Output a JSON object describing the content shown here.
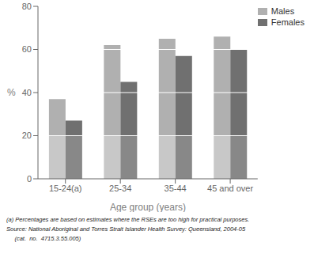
{
  "chart_data": {
    "type": "bar",
    "stacked": true,
    "categories": [
      "15-24(a)",
      "25-34",
      "35-44",
      "45 and over"
    ],
    "series": [
      {
        "name": "Males",
        "segments": [
          {
            "color": "#c8c8c8",
            "values": [
              20,
              20,
              20,
              20
            ]
          },
          {
            "color": "#b0b0b0",
            "values": [
              17,
              42,
              45,
              46
            ]
          }
        ]
      },
      {
        "name": "Females",
        "segments": [
          {
            "color": "#888888",
            "values": [
              20,
              20,
              20,
              20
            ]
          },
          {
            "color": "#707070",
            "values": [
              7,
              25,
              37,
              40
            ]
          }
        ]
      }
    ],
    "xlabel": "Age group (years)",
    "ylabel": "%",
    "ylim": [
      0,
      80
    ],
    "yticks": [
      0,
      20,
      40,
      60,
      80
    ],
    "grid": false,
    "legend": "upper right",
    "footnotes": [
      "(a) Percentages are based on estimates where the RSEs are too high for practical purposes.",
      "Source: National Aboriginal and Torres Strait Islander Health Survey: Queensland, 2004-05",
      "     (cat.  no.  4715.3.55.005)"
    ]
  }
}
